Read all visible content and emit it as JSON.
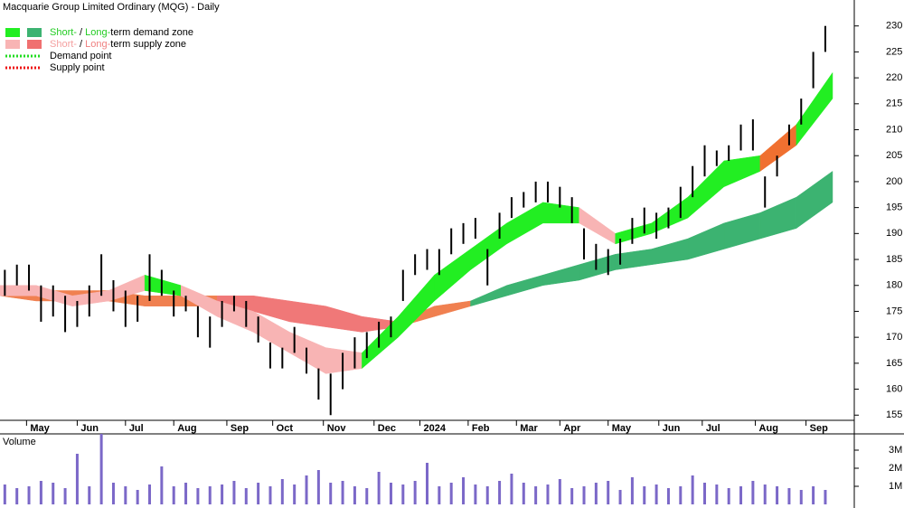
{
  "chart_data": {
    "type": "ohlc",
    "title": "Macquarie Group Limited Ordinary (MQG) - Daily",
    "legend": [
      {
        "swatches": [
          "#22ee22",
          "#3cb371"
        ],
        "parts": [
          {
            "text": "Short-",
            "color": "#22cc22"
          },
          {
            "text": " / ",
            "color": "#000000"
          },
          {
            "text": "Long-",
            "color": "#22cc22"
          },
          {
            "text": "term demand zone",
            "color": "#000000"
          }
        ]
      },
      {
        "swatches": [
          "#f8b4b4",
          "#f07070"
        ],
        "parts": [
          {
            "text": "Short-",
            "color": "#f4a0a0"
          },
          {
            "text": " / ",
            "color": "#000000"
          },
          {
            "text": "Long-",
            "color": "#f08080"
          },
          {
            "text": "term supply zone",
            "color": "#000000"
          }
        ]
      },
      {
        "dotted": "#22dd22",
        "parts": [
          {
            "text": "Demand point",
            "color": "#000000"
          }
        ]
      },
      {
        "dotted": "#ee1111",
        "parts": [
          {
            "text": "Supply point",
            "color": "#000000"
          }
        ]
      }
    ],
    "xlim": [
      0,
      354
    ],
    "xticks": [
      {
        "value": 11,
        "label": "May"
      },
      {
        "value": 32,
        "label": "Jun"
      },
      {
        "value": 52,
        "label": "Jul"
      },
      {
        "value": 72,
        "label": "Aug"
      },
      {
        "value": 94,
        "label": "Sep"
      },
      {
        "value": 113,
        "label": "Oct"
      },
      {
        "value": 134,
        "label": "Nov"
      },
      {
        "value": 155,
        "label": "Dec"
      },
      {
        "value": 174,
        "label": "2024"
      },
      {
        "value": 194,
        "label": "Feb"
      },
      {
        "value": 214,
        "label": "Mar"
      },
      {
        "value": 232,
        "label": "Apr"
      },
      {
        "value": 252,
        "label": "May"
      },
      {
        "value": 273,
        "label": "Jun"
      },
      {
        "value": 291,
        "label": "Jul"
      },
      {
        "value": 313,
        "label": "Aug"
      },
      {
        "value": 334,
        "label": "Sep"
      }
    ],
    "ylim": [
      154,
      235
    ],
    "yticks": [
      155,
      160,
      165,
      170,
      175,
      180,
      185,
      190,
      195,
      200,
      205,
      210,
      215,
      220,
      225,
      230
    ],
    "bar_color": "#000000",
    "x": [
      2,
      7,
      12,
      17,
      22,
      27,
      32,
      37,
      42,
      47,
      52,
      57,
      62,
      67,
      72,
      77,
      82,
      87,
      92,
      97,
      102,
      107,
      112,
      117,
      122,
      127,
      132,
      137,
      142,
      147,
      152,
      157,
      162,
      167,
      172,
      177,
      182,
      187,
      192,
      197,
      202,
      207,
      212,
      217,
      222,
      227,
      232,
      237,
      242,
      247,
      252,
      257,
      262,
      267,
      272,
      277,
      282,
      287,
      292,
      297,
      302,
      307,
      312,
      317,
      322,
      327,
      332,
      337,
      342
    ],
    "high": [
      183,
      184,
      184,
      180,
      180,
      178,
      177,
      180,
      186,
      181,
      179,
      178,
      186,
      183,
      179,
      178,
      176,
      174,
      177,
      178,
      177,
      174,
      169,
      168,
      172,
      168,
      164,
      163,
      167,
      170,
      171,
      173,
      174,
      183,
      186,
      187,
      187,
      191,
      192,
      193,
      187,
      194,
      197,
      198,
      200,
      200,
      199,
      197,
      191,
      188,
      187,
      189,
      193,
      195,
      194,
      195,
      199,
      203,
      207,
      206,
      207,
      211,
      212,
      201,
      205,
      211,
      216,
      225,
      230
    ],
    "low": [
      178,
      180,
      179,
      173,
      174,
      171,
      172,
      174,
      178,
      175,
      172,
      173,
      177,
      178,
      174,
      175,
      170,
      168,
      172,
      175,
      172,
      169,
      164,
      164,
      167,
      163,
      158,
      155,
      160,
      164,
      166,
      168,
      170,
      177,
      182,
      183,
      182,
      186,
      188,
      189,
      180,
      189,
      193,
      195,
      196,
      196,
      195,
      192,
      185,
      183,
      182,
      184,
      188,
      190,
      189,
      191,
      193,
      197,
      201,
      203,
      204,
      206,
      206,
      195,
      201,
      207,
      211,
      218,
      225
    ],
    "zone_x": [
      0,
      15,
      30,
      45,
      60,
      75,
      90,
      105,
      120,
      135,
      150,
      165,
      180,
      195,
      210,
      225,
      240,
      255,
      270,
      285,
      300,
      315,
      330,
      345
    ],
    "short_zone": {
      "lower": [
        178,
        178,
        176,
        177,
        179,
        178,
        174,
        171,
        167,
        163,
        164,
        170,
        177,
        183,
        188,
        192,
        192,
        188,
        190,
        193,
        199,
        202,
        207,
        216
      ],
      "upper": [
        180,
        180,
        178,
        179,
        182,
        180,
        177,
        175,
        171,
        168,
        167,
        174,
        182,
        187,
        192,
        196,
        195,
        190,
        192,
        197,
        204,
        205,
        211,
        221
      ],
      "colors": [
        "#f8b4b4",
        "#f8b4b4",
        "#f8b4b4",
        "#f8b4b4",
        "#22ee22",
        "#f8b4b4",
        "#f8b4b4",
        "#f8b4b4",
        "#f8b4b4",
        "#f8b4b4",
        "#22ee22",
        "#22ee22",
        "#22ee22",
        "#22ee22",
        "#22ee22",
        "#22ee22",
        "#f8b4b4",
        "#22ee22",
        "#22ee22",
        "#22ee22",
        "#22ee22",
        "#f07030",
        "#22ee22",
        "#22ee22"
      ]
    },
    "long_zone": {
      "lower": [
        178,
        177,
        177,
        177,
        176,
        176,
        176,
        175,
        173,
        172,
        171,
        172,
        174,
        176,
        178,
        180,
        181,
        183,
        184,
        185,
        187,
        189,
        191,
        196
      ],
      "upper": [
        179,
        179,
        179,
        179,
        178,
        178,
        178,
        178,
        177,
        176,
        174,
        173,
        176,
        177,
        180,
        182,
        184,
        186,
        187,
        189,
        192,
        194,
        197,
        202
      ],
      "colors": [
        "#f08050",
        "#f08050",
        "#f08050",
        "#f08050",
        "#f08050",
        "#f08050",
        "#f07878",
        "#f07878",
        "#f07878",
        "#f07878",
        "#f07878",
        "#f08050",
        "#f08050",
        "#3cb371",
        "#3cb371",
        "#3cb371",
        "#3cb371",
        "#3cb371",
        "#3cb371",
        "#3cb371",
        "#3cb371",
        "#3cb371",
        "#3cb371",
        "#3cb371"
      ]
    },
    "volume": {
      "title": "Volume",
      "color": "#7b68c8",
      "ylim": [
        -200000,
        3900000
      ],
      "yticks": [
        {
          "value": 1000000,
          "label": "1M"
        },
        {
          "value": 2000000,
          "label": "2M"
        },
        {
          "value": 3000000,
          "label": "3M"
        }
      ],
      "values": [
        1100000,
        900000,
        1000000,
        1300000,
        1200000,
        900000,
        2800000,
        1000000,
        3900000,
        1200000,
        1000000,
        800000,
        1100000,
        2100000,
        1000000,
        1200000,
        900000,
        1000000,
        1100000,
        1300000,
        900000,
        1200000,
        1000000,
        1400000,
        1100000,
        1600000,
        1900000,
        1200000,
        1300000,
        1000000,
        900000,
        1800000,
        1200000,
        1100000,
        1300000,
        2300000,
        1000000,
        1200000,
        1500000,
        1100000,
        1000000,
        1300000,
        1700000,
        1200000,
        1000000,
        1100000,
        1400000,
        900000,
        1000000,
        1200000,
        1300000,
        800000,
        1500000,
        1000000,
        1100000,
        900000,
        1000000,
        1600000,
        1200000,
        1100000,
        900000,
        1000000,
        1300000,
        1100000,
        1000000,
        900000,
        800000,
        1000000,
        800000
      ]
    }
  }
}
